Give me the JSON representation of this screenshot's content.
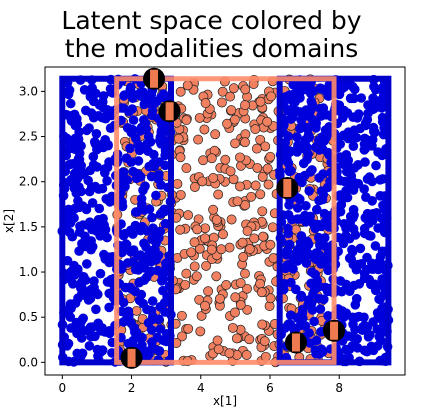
{
  "chart_data": {
    "type": "scatter",
    "title": [
      "Latent space colored by",
      "the modalities domains"
    ],
    "xlabel": "x[1]",
    "ylabel": "x[2]",
    "xlim": [
      -0.5,
      9.9
    ],
    "ylim": [
      -0.14,
      3.27
    ],
    "x_ticks": [
      0,
      2,
      4,
      6,
      8
    ],
    "x_tick_labels": [
      "0",
      "2",
      "4",
      "6",
      "8"
    ],
    "y_ticks": [
      0.0,
      0.5,
      1.0,
      1.5,
      2.0,
      2.5,
      3.0
    ],
    "y_tick_labels": [
      "0.0",
      "0.5",
      "1.0",
      "1.5",
      "2.0",
      "2.5",
      "3.0"
    ],
    "grid": false,
    "legend": "none",
    "domains": [
      {
        "name": "blue",
        "color": "#0000cc",
        "x_range": [
          0,
          3.14
        ],
        "y_range": [
          0,
          3.14
        ]
      },
      {
        "name": "blue",
        "color": "#0000cc",
        "x_range": [
          6.28,
          9.42
        ],
        "y_range": [
          0,
          3.14
        ]
      },
      {
        "name": "orange",
        "color": "#ff8c69",
        "x_range": [
          1.57,
          7.85
        ],
        "y_range": [
          0,
          3.14
        ]
      }
    ],
    "series": [
      {
        "color": "#0000dd",
        "marker": "circle-filled",
        "point_count": 1100,
        "x_ranges": [
          [
            0,
            3.14
          ],
          [
            6.28,
            9.42
          ]
        ],
        "y_range": [
          0,
          3.14
        ]
      },
      {
        "color": "#f08060",
        "marker": "circle-black-edge",
        "point_count": 560,
        "x_ranges": [
          [
            1.57,
            7.85
          ]
        ],
        "y_range": [
          0,
          3.14
        ]
      }
    ],
    "highlighted_points": [
      {
        "x": 2.65,
        "y": 3.14
      },
      {
        "x": 3.1,
        "y": 2.78
      },
      {
        "x": 6.5,
        "y": 1.93
      },
      {
        "x": 2.0,
        "y": 0.05
      },
      {
        "x": 6.75,
        "y": 0.22
      },
      {
        "x": 7.85,
        "y": 0.35
      }
    ]
  }
}
